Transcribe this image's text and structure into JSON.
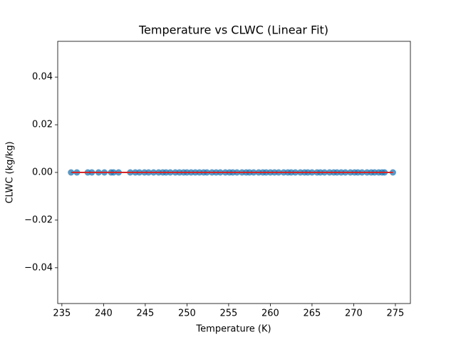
{
  "chart_data": {
    "type": "scatter",
    "title": "Temperature vs CLWC (Linear Fit)",
    "x_label": "Temperature (K)",
    "y_label": "CLWC (kg/kg)",
    "xlim": [
      234.5,
      276.8
    ],
    "ylim": [
      -0.055,
      0.055
    ],
    "xticks": [
      235,
      240,
      245,
      250,
      255,
      260,
      265,
      270,
      275
    ],
    "yticks": [
      {
        "value": -0.04,
        "label": "−0.04"
      },
      {
        "value": -0.02,
        "label": "−0.02"
      },
      {
        "value": 0,
        "label": "0.00"
      },
      {
        "value": 0.02,
        "label": "0.02"
      },
      {
        "value": 0.04,
        "label": "0.04"
      }
    ],
    "series": [
      {
        "type": "scatter",
        "color": "#1f77b4",
        "x": [
          236.1,
          236.8,
          238.1,
          238.6,
          239.4,
          240.1,
          240.9,
          241.2,
          241.8,
          243.2,
          243.8,
          244.3,
          244.9,
          245.4,
          246.0,
          246.6,
          247.1,
          247.5,
          248.0,
          248.6,
          249.1,
          249.6,
          250.0,
          250.5,
          251.0,
          251.5,
          252.0,
          252.4,
          253.0,
          253.5,
          254.0,
          254.6,
          255.1,
          255.5,
          256.0,
          256.6,
          257.1,
          257.5,
          258.0,
          258.6,
          259.1,
          259.5,
          260.0,
          260.5,
          261.0,
          261.6,
          262.1,
          262.5,
          263.0,
          263.6,
          264.1,
          264.5,
          265.0,
          265.6,
          266.0,
          266.5,
          267.1,
          267.6,
          268.0,
          268.5,
          269.0,
          269.6,
          270.1,
          270.5,
          271.0,
          271.6,
          272.1,
          272.5,
          273.0,
          273.4,
          273.7,
          274.7
        ],
        "values": [
          0,
          0,
          0,
          0,
          0,
          0,
          0,
          0,
          0,
          0,
          0,
          0,
          0,
          0,
          0,
          0,
          0,
          0,
          0,
          0,
          0,
          0,
          0,
          0,
          0,
          0,
          0,
          0,
          0,
          0,
          0,
          0,
          0,
          0,
          0,
          0,
          0,
          0,
          0,
          0,
          0,
          0,
          0,
          0,
          0,
          0,
          0,
          0,
          0,
          0,
          0,
          0,
          0,
          0,
          0,
          0,
          0,
          0,
          0,
          0,
          0,
          0,
          0,
          0,
          0,
          0,
          0,
          0,
          0,
          0,
          0,
          0
        ]
      },
      {
        "type": "line",
        "color": "#d62728",
        "x": [
          236.1,
          274.7
        ],
        "values": [
          0,
          0
        ]
      }
    ]
  }
}
